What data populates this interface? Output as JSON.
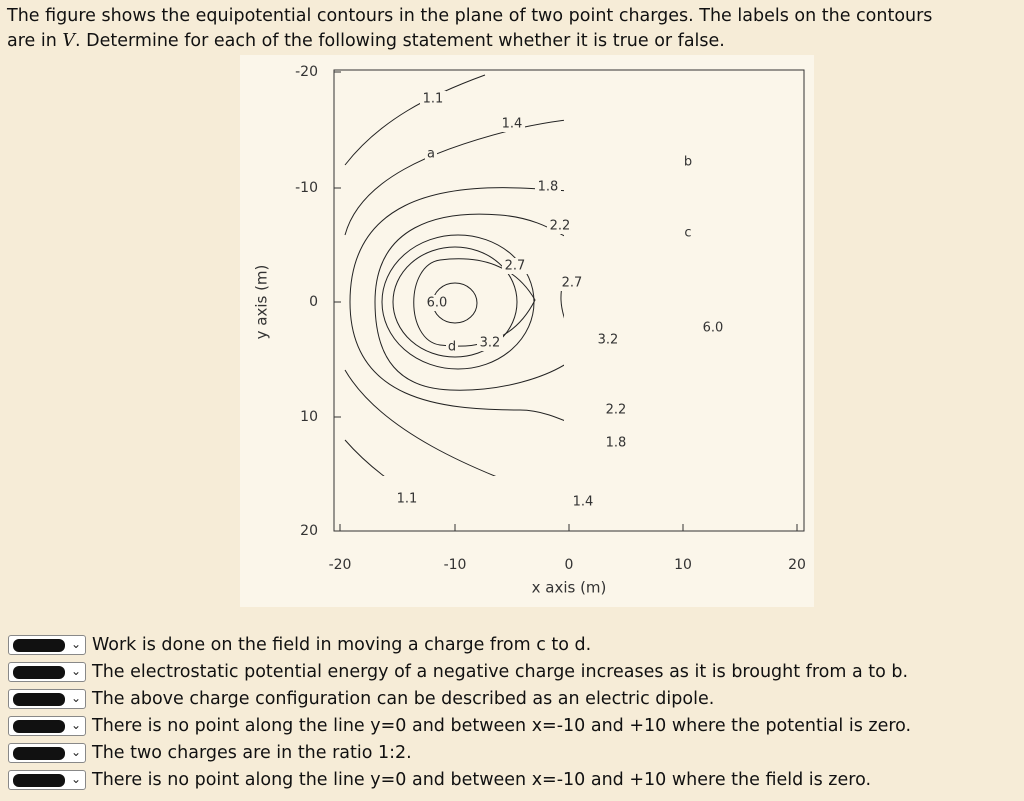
{
  "question": {
    "line1": "The figure shows the equipotential contours in the plane of two point charges. The labels on the contours",
    "line2_start": "are in ",
    "line2_unit": "V",
    "line2_end": ". Determine for each of the following statement whether it is true or false."
  },
  "figure": {
    "x_label": "x axis (m)",
    "y_label": "y axis (m)",
    "x_ticks": [
      "-20",
      "-10",
      "0",
      "10",
      "20"
    ],
    "y_ticks": [
      "-20",
      "-10",
      "0",
      "10",
      "20"
    ],
    "contour_labels": [
      "1.1",
      "1.4",
      "1.8",
      "2.2",
      "2.7",
      "2.7",
      "6.0",
      "3.2",
      "3.2",
      "6.0",
      "2.2",
      "1.8",
      "1.4",
      "1.1"
    ],
    "point_labels": [
      "a",
      "b",
      "c",
      "d"
    ]
  },
  "statements": [
    "Work is done on the field in moving a charge from c to d.",
    "The electrostatic potential energy of a negative charge increases as it is brought from a to b.",
    "The above charge configuration can be described as an electric dipole.",
    "There is no point along the line y=0 and between x=-10 and +10 where the potential is zero.",
    "The two charges are in the ratio 1:2.",
    "There is no point along the line y=0 and between x=-10 and +10 where the field is zero."
  ]
}
